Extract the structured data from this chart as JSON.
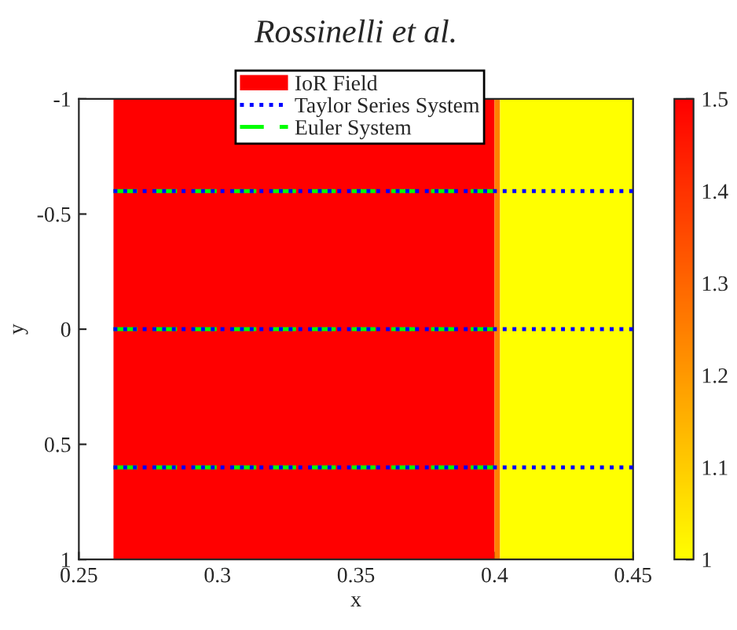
{
  "chart_data": {
    "type": "line",
    "title": "Rossinelli et al.",
    "xlabel": "x",
    "ylabel": "y",
    "xlim": [
      0.25,
      0.45
    ],
    "xticks": [
      0.25,
      0.3,
      0.35,
      0.4,
      0.45
    ],
    "ylim": [
      1,
      -1
    ],
    "yticks": [
      -1,
      -0.5,
      0,
      0.5,
      1
    ],
    "clim": [
      1,
      1.5
    ],
    "cticks": [
      1,
      1.1,
      1.2,
      1.3,
      1.4,
      1.5
    ],
    "grid": false,
    "legend": "top",
    "bands": [
      {
        "axis": "x",
        "from": 0.2625,
        "to": 0.4,
        "label": "IoR Field",
        "color": "#ff0000"
      },
      {
        "axis": "x",
        "from": 0.4,
        "to": 0.402,
        "color": "#ff8000"
      },
      {
        "axis": "x",
        "from": 0.402,
        "to": 0.45,
        "color": "#ffff00"
      }
    ],
    "series": [
      {
        "name": "Taylor Series System",
        "color": "#0000ff",
        "line_style": "dotted",
        "x": [
          0.2625,
          0.45
        ],
        "values": [
          -0.6,
          -0.6
        ]
      },
      {
        "color": "#0000ff",
        "line_style": "dotted",
        "x": [
          0.2625,
          0.45
        ],
        "values": [
          0,
          0
        ]
      },
      {
        "color": "#0000ff",
        "line_style": "dotted",
        "x": [
          0.2625,
          0.45
        ],
        "values": [
          0.6,
          0.6
        ]
      },
      {
        "name": "Euler System",
        "type": "line",
        "color": "#00ff00",
        "line_style": "dashed",
        "x": [
          0.2625,
          0.4
        ],
        "values": [
          -0.6,
          -0.6
        ]
      },
      {
        "type": "line",
        "color": "#00ff00",
        "line_style": "dashed",
        "x": [
          0.2625,
          0.4
        ],
        "values": [
          0,
          0
        ]
      },
      {
        "type": "line",
        "color": "#00ff00",
        "line_style": "dashed",
        "x": [
          0.2625,
          0.4
        ],
        "values": [
          0.6,
          0.6
        ]
      }
    ]
  }
}
